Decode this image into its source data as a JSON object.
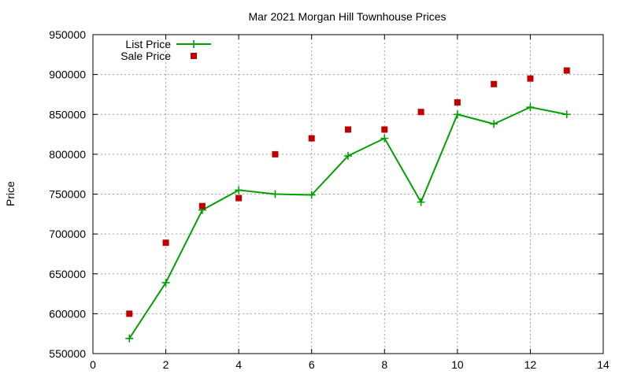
{
  "chart_data": {
    "type": "line",
    "title": "Mar 2021 Morgan Hill Townhouse Prices",
    "xlabel": "",
    "ylabel": "Price",
    "xlim": [
      0,
      14
    ],
    "ylim": [
      550000,
      950000
    ],
    "xticks": [
      0,
      2,
      4,
      6,
      8,
      10,
      12,
      14
    ],
    "yticks": [
      550000,
      600000,
      650000,
      700000,
      750000,
      800000,
      850000,
      900000,
      950000
    ],
    "grid": true,
    "legend_position": "top-left",
    "series": [
      {
        "name": "List Price",
        "style": "line-plus",
        "color": "#00a000",
        "x": [
          1,
          2,
          3,
          4,
          5,
          6,
          7,
          8,
          9,
          10,
          11,
          12,
          13
        ],
        "values": [
          569000,
          639000,
          730000,
          755000,
          750000,
          749000,
          798000,
          820000,
          740000,
          850000,
          838000,
          859000,
          850000
        ]
      },
      {
        "name": "Sale Price",
        "style": "square-points",
        "color": "#c00000",
        "x": [
          1,
          2,
          3,
          4,
          5,
          6,
          7,
          8,
          9,
          10,
          11,
          12,
          13
        ],
        "values": [
          600000,
          689000,
          735000,
          745000,
          800000,
          820000,
          831000,
          831000,
          853000,
          865000,
          888000,
          895000,
          905000
        ]
      }
    ]
  }
}
